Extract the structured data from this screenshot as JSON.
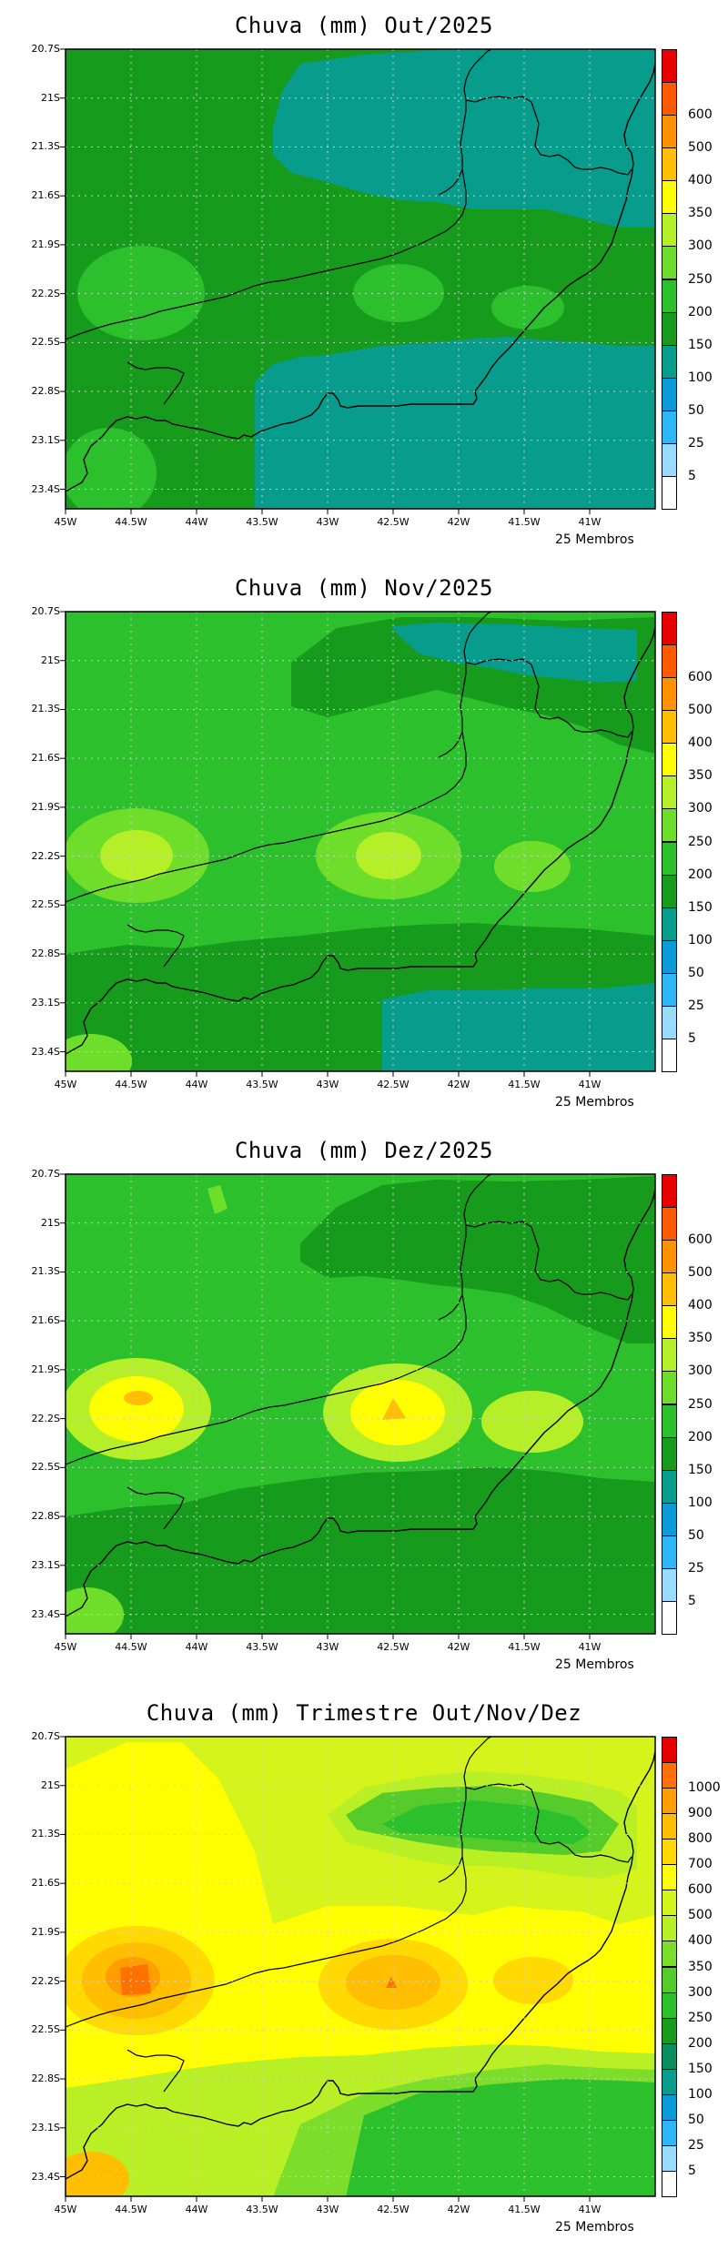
{
  "panels": [
    {
      "title": "Chuva (mm) Out/2025",
      "members": "25 Membros",
      "background": "#169B1C",
      "legend": [
        "5",
        "25",
        "50",
        "100",
        "150",
        "200",
        "250",
        "300",
        "350",
        "400",
        "500",
        "600"
      ],
      "colors": [
        "#FFFFFF",
        "#99DCFF",
        "#2EB6F5",
        "#0C9BD6",
        "#079C8C",
        "#169B1C",
        "#2DC02D",
        "#6FDE2A",
        "#B4EF28",
        "#FFFF00",
        "#FFBE00",
        "#FF9200",
        "#FF5A00",
        "#E80000"
      ]
    },
    {
      "title": "Chuva (mm) Nov/2025",
      "members": "25 Membros",
      "background": "#2DC02D",
      "legend": [
        "5",
        "25",
        "50",
        "100",
        "150",
        "200",
        "250",
        "300",
        "350",
        "400",
        "500",
        "600"
      ],
      "colors": [
        "#FFFFFF",
        "#99DCFF",
        "#2EB6F5",
        "#0C9BD6",
        "#079C8C",
        "#169B1C",
        "#2DC02D",
        "#6FDE2A",
        "#B4EF28",
        "#FFFF00",
        "#FFBE00",
        "#FF9200",
        "#FF5A00",
        "#E80000"
      ]
    },
    {
      "title": "Chuva (mm) Dez/2025",
      "members": "25 Membros",
      "background": "#2DC02D",
      "legend": [
        "5",
        "25",
        "50",
        "100",
        "150",
        "200",
        "250",
        "300",
        "350",
        "400",
        "500",
        "600"
      ],
      "colors": [
        "#FFFFFF",
        "#99DCFF",
        "#2EB6F5",
        "#0C9BD6",
        "#079C8C",
        "#169B1C",
        "#2DC02D",
        "#6FDE2A",
        "#B4EF28",
        "#FFFF00",
        "#FFBE00",
        "#FF9200",
        "#FF5A00",
        "#E80000"
      ]
    },
    {
      "title": "Chuva (mm) Trimestre Out/Nov/Dez",
      "members": "25 Membros",
      "background": "#D4F41C",
      "legend": [
        "5",
        "25",
        "50",
        "100",
        "150",
        "200",
        "250",
        "300",
        "350",
        "400",
        "500",
        "600",
        "700",
        "800",
        "900",
        "1000"
      ],
      "colors": [
        "#FFFFFF",
        "#99DCFF",
        "#2EB6F5",
        "#0C9BD6",
        "#079C8C",
        "#0A8E60",
        "#169B1C",
        "#2DC02D",
        "#55CC2C",
        "#7CDE2A",
        "#B8EF25",
        "#D4F41C",
        "#FFFF00",
        "#FFD900",
        "#FFBE00",
        "#FF9E00",
        "#FF7200",
        "#E80000"
      ]
    }
  ],
  "yticks": [
    "20.7S",
    "21S",
    "21.3S",
    "21.6S",
    "21.9S",
    "22.2S",
    "22.5S",
    "22.8S",
    "23.1S",
    "23.4S"
  ],
  "xticks": [
    "45W",
    "44.5W",
    "44W",
    "43.5W",
    "43W",
    "42.5W",
    "42W",
    "41.5W",
    "41W"
  ]
}
